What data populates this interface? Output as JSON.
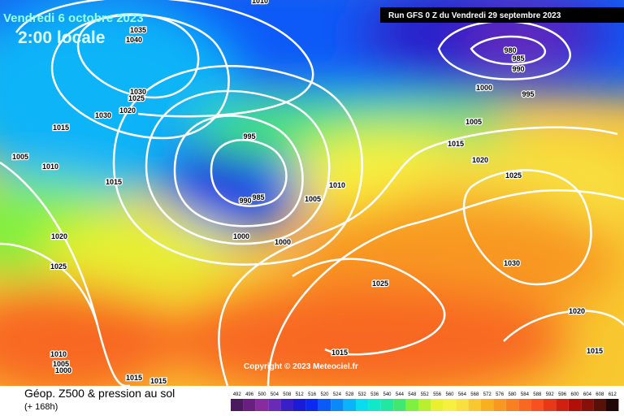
{
  "header": {
    "valid_date": "Vendredi 6 octobre 2023",
    "local_time": "2:00 locale",
    "run": "Run GFS 0 Z du Vendredi 29 septembre 2023"
  },
  "copyright": "Copyright © 2023 Meteociel.fr",
  "legend": {
    "title": "Géop. Z500 & pression au sol",
    "lead": "(+ 168h)",
    "levels": [
      492,
      496,
      500,
      504,
      508,
      512,
      516,
      520,
      524,
      528,
      532,
      536,
      540,
      544,
      548,
      552,
      556,
      560,
      564,
      568,
      572,
      576,
      580,
      584,
      588,
      592,
      596,
      600,
      604,
      608,
      612
    ],
    "colors": [
      "#4b1a5e",
      "#6a1f80",
      "#8a2aa0",
      "#6a2ab8",
      "#3a1ec8",
      "#1a1ad8",
      "#0a2af0",
      "#0a5af8",
      "#0a8af8",
      "#0ab4f8",
      "#0adcf0",
      "#10e8c8",
      "#20e8a0",
      "#40e870",
      "#80f040",
      "#b8f030",
      "#e8f030",
      "#f8f040",
      "#f8e040",
      "#f8c830",
      "#f8b020",
      "#f89820",
      "#f88020",
      "#f86820",
      "#f85020",
      "#e83818",
      "#d02010",
      "#b01008",
      "#881008",
      "#581008",
      "#200808"
    ]
  },
  "isobars": [
    1010,
    1035,
    1040,
    1030,
    1025,
    1020,
    1030,
    1015,
    1005,
    1010,
    1015,
    995,
    985,
    990,
    1000,
    1000,
    1005,
    1010,
    1020,
    1025,
    1025,
    1015,
    1010,
    1005,
    1000,
    1015,
    1015,
    1000,
    995,
    1005,
    1015,
    1020,
    1025,
    1030,
    1020,
    1015,
    980,
    985,
    990
  ]
}
